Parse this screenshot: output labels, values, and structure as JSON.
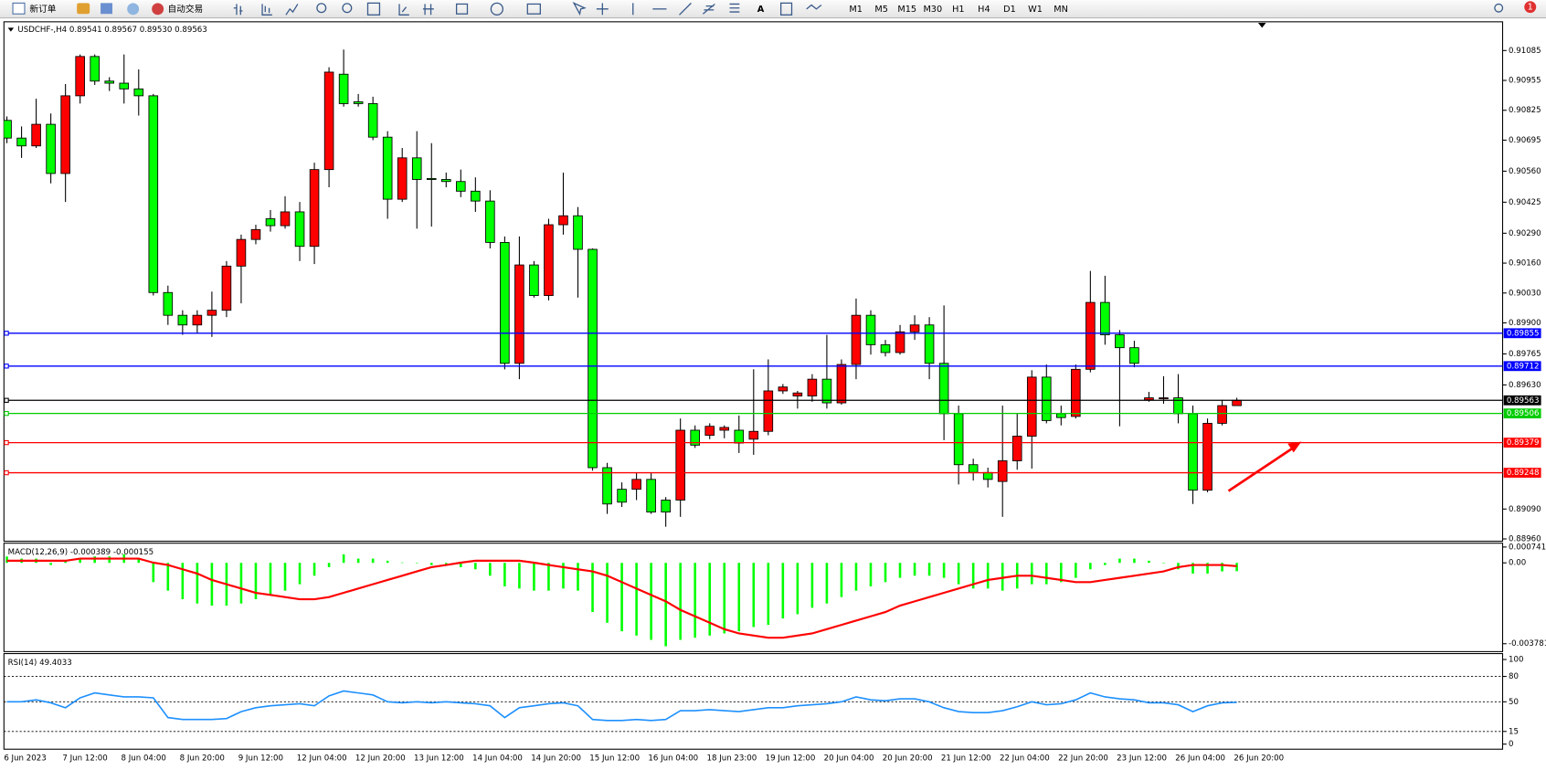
{
  "toolbar": {
    "new_order": "新订单",
    "auto_trading": "自动交易",
    "text_tool": "A",
    "timeframes": [
      "M1",
      "M5",
      "M15",
      "M30",
      "H1",
      "H4",
      "D1",
      "W1",
      "MN"
    ],
    "notifications": 1
  },
  "chart_data": [
    {
      "type": "candlestick",
      "title": "USDCHF-,H4  0.89541 0.89567 0.89530 0.89563",
      "categories": [
        "6 Jun 2023",
        null,
        null,
        null,
        "7 Jun 12:00",
        null,
        null,
        null,
        "8 Jun 04:00",
        null,
        null,
        null,
        "8 Jun 20:00",
        null,
        null,
        null,
        "9 Jun 12:00",
        null,
        null,
        null,
        "12 Jun 04:00",
        null,
        null,
        null,
        "12 Jun 20:00",
        null,
        null,
        null,
        "13 Jun 12:00",
        null,
        null,
        null,
        "14 Jun 04:00",
        null,
        null,
        null,
        "14 Jun 20:00",
        null,
        null,
        null,
        "15 Jun 12:00",
        null,
        null,
        null,
        "16 Jun 04:00",
        null,
        null,
        null,
        "18 Jun 23:00",
        null,
        null,
        null,
        "19 Jun 12:00",
        null,
        null,
        null,
        "20 Jun 04:00",
        null,
        null,
        null,
        "20 Jun 20:00",
        null,
        null,
        null,
        "21 Jun 12:00",
        null,
        null,
        null,
        "22 Jun 04:00",
        null,
        null,
        null,
        "22 Jun 20:00",
        null,
        null,
        null,
        "23 Jun 12:00",
        null,
        null,
        null,
        "26 Jun 04:00",
        null,
        null,
        null,
        "26 Jun 20:00"
      ],
      "open": [
        0.90781,
        0.90704,
        0.9067,
        0.90764,
        0.9055,
        0.90888,
        0.91059,
        0.90952,
        0.90943,
        0.90918,
        0.90888,
        0.90032,
        0.89933,
        0.89891,
        0.89933,
        0.89955,
        0.90147,
        0.90263,
        0.90353,
        0.90323,
        0.90383,
        0.90233,
        0.90567,
        0.90982,
        0.90862,
        0.90854,
        0.90708,
        0.90438,
        0.90618,
        0.90528,
        0.90524,
        0.90515,
        0.90473,
        0.9043,
        0.9025,
        0.89724,
        0.90152,
        0.90019,
        0.90327,
        0.90366,
        0.9022,
        0.8927,
        0.89176,
        0.89176,
        0.89219,
        0.89129,
        0.89129,
        0.89433,
        0.89411,
        0.89433,
        0.89433,
        0.89394,
        0.89428,
        0.89604,
        0.89582,
        0.89582,
        0.89655,
        0.89552,
        0.89719,
        0.89933,
        0.89805,
        0.89771,
        0.89861,
        0.89891,
        0.89724,
        0.89505,
        0.89283,
        0.89249,
        0.8921,
        0.893,
        0.89407,
        0.89664,
        0.89505,
        0.89493,
        0.89698,
        0.89989,
        0.89848,
        0.89792,
        0.89565,
        0.8957,
        0.89574,
        0.89505,
        0.89172,
        0.89463,
        0.8954
      ],
      "high": [
        0.90798,
        0.90755,
        0.90875,
        0.90811,
        0.90939,
        0.91068,
        0.91068,
        0.90969,
        0.91068,
        0.91003,
        0.90896,
        0.90062,
        0.89955,
        0.89955,
        0.90036,
        0.90169,
        0.90284,
        0.90327,
        0.90391,
        0.90451,
        0.90426,
        0.90597,
        0.91012,
        0.91089,
        0.90896,
        0.90884,
        0.90734,
        0.90661,
        0.90734,
        0.90682,
        0.90554,
        0.90567,
        0.90533,
        0.90477,
        0.90276,
        0.90276,
        0.90169,
        0.90353,
        0.90554,
        0.90404,
        0.90224,
        0.89291,
        0.89206,
        0.89249,
        0.89249,
        0.89142,
        0.89484,
        0.89454,
        0.89463,
        0.89454,
        0.89497,
        0.89698,
        0.89741,
        0.89634,
        0.89604,
        0.89677,
        0.89848,
        0.89741,
        0.90006,
        0.89955,
        0.89826,
        0.89891,
        0.89933,
        0.89925,
        0.89976,
        0.8954,
        0.89309,
        0.8927,
        0.8954,
        0.89505,
        0.89694,
        0.89719,
        0.8954,
        0.89719,
        0.90126,
        0.90105,
        0.89869,
        0.89822,
        0.896,
        0.89668,
        0.89677,
        0.8954,
        0.89484,
        0.89565,
        0.89574
      ],
      "low": [
        0.90682,
        0.90618,
        0.90661,
        0.90507,
        0.90426,
        0.90854,
        0.90935,
        0.90909,
        0.90854,
        0.90802,
        0.90019,
        0.89891,
        0.89848,
        0.89856,
        0.89839,
        0.89925,
        0.89985,
        0.90242,
        0.90297,
        0.9031,
        0.90169,
        0.90156,
        0.9049,
        0.90841,
        0.90841,
        0.90695,
        0.90353,
        0.90426,
        0.9031,
        0.90319,
        0.9049,
        0.90447,
        0.90383,
        0.90224,
        0.89698,
        0.89655,
        0.9001,
        0.89998,
        0.90284,
        0.9001,
        0.89257,
        0.89069,
        0.89099,
        0.89129,
        0.89069,
        0.89013,
        0.89056,
        0.89356,
        0.89394,
        0.89398,
        0.89334,
        0.89326,
        0.89411,
        0.89591,
        0.89527,
        0.89557,
        0.89527,
        0.89544,
        0.89655,
        0.89762,
        0.89754,
        0.89762,
        0.89826,
        0.89655,
        0.8939,
        0.89197,
        0.89214,
        0.89184,
        0.89056,
        0.89261,
        0.89266,
        0.89463,
        0.89454,
        0.89484,
        0.89685,
        0.89805,
        0.8945,
        0.89707,
        0.89557,
        0.89548,
        0.89463,
        0.89112,
        0.89163,
        0.89454,
        0.8954
      ],
      "close": [
        0.90704,
        0.9067,
        0.90764,
        0.9055,
        0.90888,
        0.91059,
        0.90952,
        0.90943,
        0.90918,
        0.90888,
        0.90032,
        0.89933,
        0.89891,
        0.89933,
        0.89955,
        0.90147,
        0.90263,
        0.90306,
        0.90323,
        0.90383,
        0.90233,
        0.90567,
        0.90991,
        0.90854,
        0.90854,
        0.90708,
        0.90438,
        0.90618,
        0.90524,
        0.90524,
        0.90515,
        0.90473,
        0.9043,
        0.9025,
        0.89724,
        0.90152,
        0.90019,
        0.90327,
        0.90366,
        0.9022,
        0.8927,
        0.89112,
        0.8912,
        0.89219,
        0.89077,
        0.89077,
        0.89433,
        0.89368,
        0.8945,
        0.89445,
        0.89377,
        0.89428,
        0.89604,
        0.89621,
        0.89595,
        0.89655,
        0.89552,
        0.89719,
        0.89933,
        0.89805,
        0.89771,
        0.89861,
        0.89891,
        0.89724,
        0.89505,
        0.89283,
        0.89249,
        0.89219,
        0.893,
        0.89407,
        0.89664,
        0.89475,
        0.89488,
        0.89698,
        0.89989,
        0.89848,
        0.89792,
        0.89724,
        0.89574,
        0.89574,
        0.89505,
        0.89172,
        0.89463,
        0.8954,
        0.89563
      ],
      "up_color": "#ff0000",
      "down_color": "#00ff00",
      "ylim": [
        0.8895,
        0.9121
      ],
      "yticks": [
        0.91085,
        0.90955,
        0.90825,
        0.90695,
        {
          "value": 0.9056,
          "label": "0.90560"
        },
        0.90425,
        {
          "value": 0.9029,
          "label": "0.90290"
        },
        {
          "value": 0.9016,
          "label": "0.90160"
        },
        {
          "value": 0.9003,
          "label": "0.90030"
        },
        {
          "value": 0.899,
          "label": "0.89900"
        },
        0.89765,
        {
          "value": 0.8963,
          "label": "0.89630"
        },
        {
          "value": 0.8909,
          "label": "0.89090"
        },
        {
          "value": 0.8896,
          "label": "0.88960"
        }
      ],
      "levels": [
        {
          "value": 0.89855,
          "color": "#0000ff"
        },
        {
          "value": 0.89712,
          "color": "#0000ff"
        },
        {
          "value": 0.89563,
          "color": "#000000"
        },
        {
          "value": 0.89506,
          "color": "#00cc00"
        },
        {
          "value": 0.89379,
          "color": "#ff0000"
        },
        {
          "value": 0.89248,
          "color": "#ff0000"
        }
      ]
    },
    {
      "type": "macd",
      "title": "MACD(12,26,9) -0.000389 -0.000155",
      "histogram": {
        "color": "#00ff00",
        "values": [
          0.0003,
          0.0002,
          0.0002,
          -0.0001,
          0.0001,
          0.0002,
          0.0003,
          0.0003,
          0.0004,
          0.0002,
          -0.0009,
          -0.0013,
          -0.0017,
          -0.0019,
          -0.002,
          -0.002,
          -0.0019,
          -0.0017,
          -0.0015,
          -0.0013,
          -0.001,
          -0.0006,
          -0.0002,
          0.0004,
          0.0002,
          0.0002,
          0.0001,
          2e-05,
          1e-05,
          -0.0001,
          -0.0001,
          -0.0002,
          -0.0003,
          -0.0006,
          -0.0011,
          -0.0012,
          -0.0013,
          -0.0013,
          -0.0012,
          -0.0013,
          -0.0023,
          -0.0028,
          -0.0032,
          -0.0034,
          -0.0036,
          -0.0039,
          -0.0036,
          -0.0035,
          -0.0034,
          -0.0033,
          -0.0032,
          -0.003,
          -0.0029,
          -0.0026,
          -0.0024,
          -0.0021,
          -0.0019,
          -0.0016,
          -0.0013,
          -0.0011,
          -0.0009,
          -0.0007,
          -0.0006,
          -0.0006,
          -0.0007,
          -0.001,
          -0.0012,
          -0.0012,
          -0.0013,
          -0.0012,
          -0.001,
          -0.001,
          -0.0009,
          -0.0007,
          -0.0003,
          -0.0001,
          0.0002,
          0.0002,
          0.0001,
          -2e-05,
          -0.0003,
          -0.0005,
          -0.0005,
          -0.0004,
          -0.000389
        ]
      },
      "signal": {
        "color": "#ff0000",
        "values": [
          0.0001,
          0.0001,
          0.0001,
          0.0001,
          0.0001,
          0.0002,
          0.0002,
          0.0002,
          0.0002,
          0.0002,
          1e-05,
          -0.0001,
          -0.0003,
          -0.0005,
          -0.0008,
          -0.001,
          -0.0012,
          -0.0014,
          -0.0015,
          -0.0016,
          -0.0017,
          -0.0017,
          -0.0016,
          -0.0014,
          -0.0012,
          -0.001,
          -0.0008,
          -0.0006,
          -0.0004,
          -0.0002,
          -0.0001,
          1e-05,
          0.0001,
          0.0001,
          0.0001,
          0.0001,
          1e-05,
          -0.0001,
          -0.0002,
          -0.0003,
          -0.0004,
          -0.0006,
          -0.0009,
          -0.0012,
          -0.0015,
          -0.0018,
          -0.0022,
          -0.0025,
          -0.0028,
          -0.0031,
          -0.0033,
          -0.0034,
          -0.0035,
          -0.0035,
          -0.0034,
          -0.0033,
          -0.0031,
          -0.0029,
          -0.0027,
          -0.0025,
          -0.0023,
          -0.002,
          -0.0018,
          -0.0016,
          -0.0014,
          -0.0012,
          -0.001,
          -0.0008,
          -0.0007,
          -0.0006,
          -0.0006,
          -0.0007,
          -0.0008,
          -0.0009,
          -0.0009,
          -0.0008,
          -0.0007,
          -0.0006,
          -0.0005,
          -0.0004,
          -0.0002,
          -0.0001,
          -0.0001,
          -0.0001,
          -0.000155
        ]
      },
      "ylim": [
        -0.00415,
        0.00092
      ],
      "yticks": [
        0.000741,
        {
          "value": 0,
          "label": "0.00"
        },
        -0.003781
      ]
    },
    {
      "type": "line",
      "title": "RSI(14) 49.4033",
      "color": "#1e90ff",
      "values": [
        50.0,
        50.0,
        52.3,
        48.8,
        43.0,
        54.7,
        60.5,
        58.1,
        55.8,
        55.8,
        54.7,
        31.4,
        29.1,
        29.1,
        29.1,
        30.2,
        38.4,
        43.0,
        45.3,
        46.5,
        47.7,
        45.3,
        57.0,
        62.8,
        60.5,
        58.1,
        50.0,
        48.8,
        50.0,
        48.8,
        50.0,
        48.8,
        47.7,
        45.3,
        31.4,
        43.0,
        45.3,
        47.7,
        48.8,
        45.3,
        29.1,
        27.9,
        27.9,
        29.1,
        27.9,
        29.1,
        39.5,
        39.5,
        40.7,
        39.5,
        38.4,
        40.7,
        43.0,
        43.0,
        45.3,
        46.5,
        47.7,
        50.0,
        55.8,
        52.3,
        51.2,
        53.5,
        53.5,
        50.0,
        43.0,
        38.4,
        37.2,
        37.2,
        39.5,
        44.2,
        50.0,
        46.5,
        47.7,
        52.3,
        60.5,
        55.8,
        53.5,
        52.3,
        48.8,
        48.8,
        46.5,
        38.4,
        45.3,
        48.8,
        49.4033
      ],
      "ylim": [
        -6,
        107
      ],
      "yticks": [
        100,
        80,
        50,
        15,
        0
      ],
      "levels": [
        80,
        50,
        15
      ]
    }
  ]
}
